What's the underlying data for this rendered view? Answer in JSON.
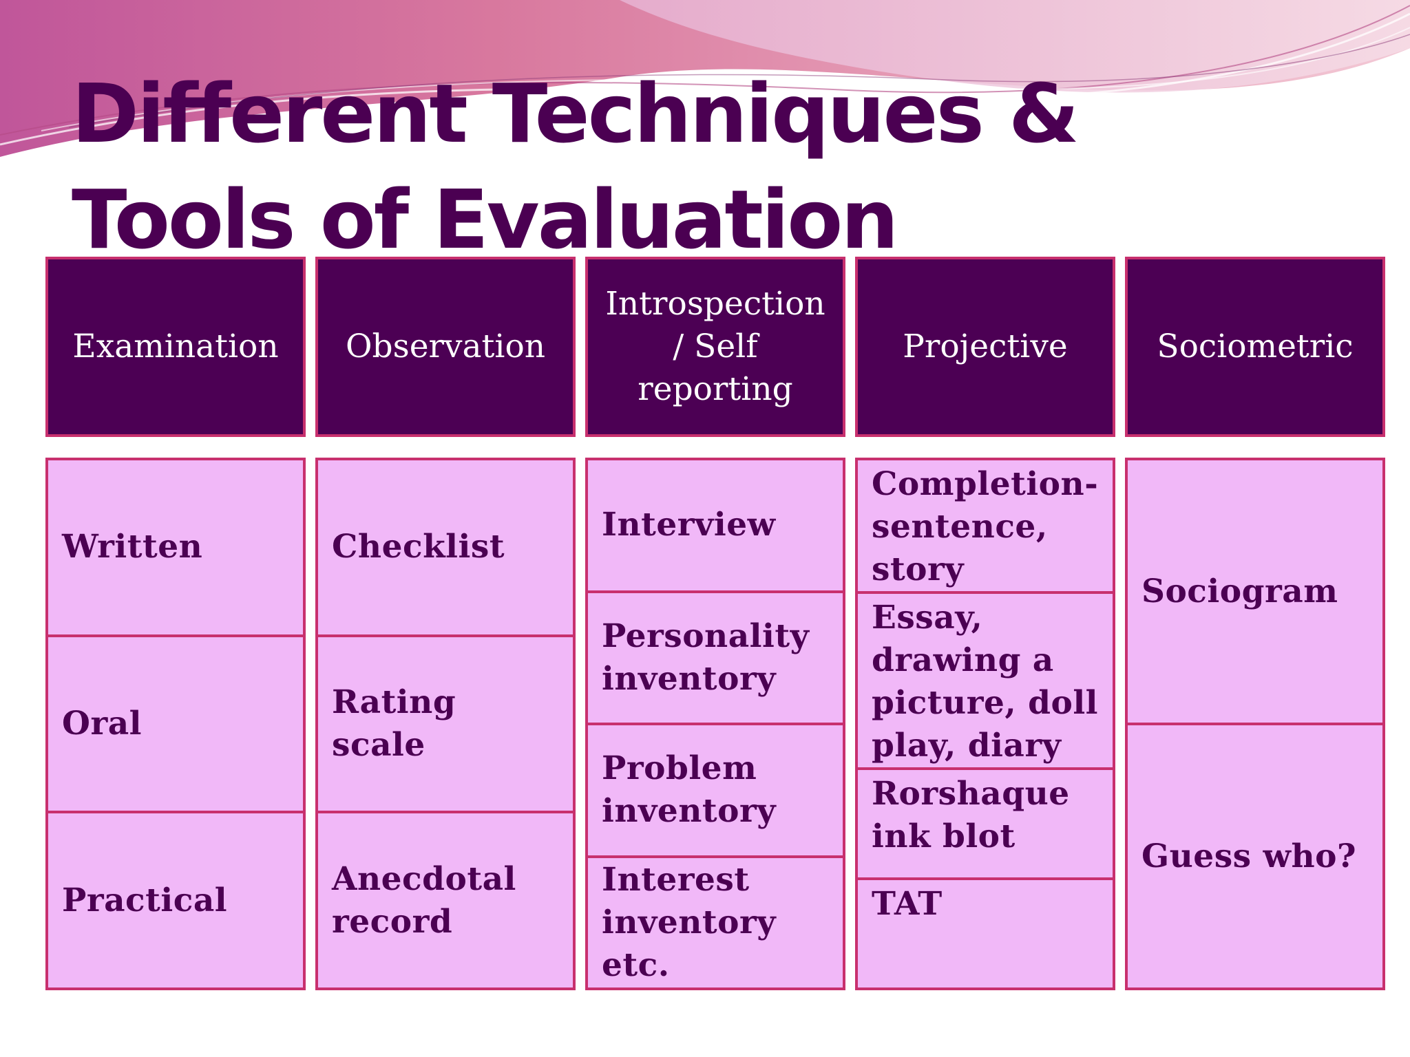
{
  "slide": {
    "title": "Different Techniques & Tools of Evaluation",
    "colors": {
      "title": "#4b0052",
      "header_bg": "#4c0054",
      "cell_bg": "#f1b8f8",
      "border": "#c8306e",
      "header_text": "#ffffff"
    }
  },
  "table": {
    "columns": [
      {
        "header": "Examination",
        "items": [
          "Written",
          "Oral",
          "Practical"
        ]
      },
      {
        "header": "Observation",
        "items": [
          "Checklist",
          "Rating scale",
          "Anecdotal record"
        ]
      },
      {
        "header": "Introspection / Self reporting",
        "items": [
          "Interview",
          "Personality inventory",
          "Problem inventory",
          "Interest inventory etc."
        ]
      },
      {
        "header": "Projective",
        "items": [
          "Completion- sentence, story",
          "Essay, drawing a picture, doll play, diary",
          "Rorshaque ink blot",
          "TAT"
        ]
      },
      {
        "header": "Sociometric",
        "items": [
          "Sociogram",
          "Guess who?"
        ]
      }
    ]
  }
}
